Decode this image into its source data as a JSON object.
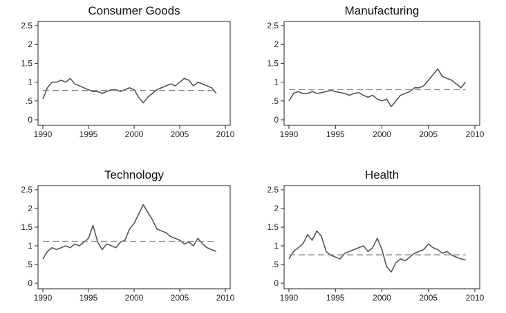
{
  "chart_data": [
    {
      "type": "line",
      "title": "Consumer Goods",
      "xlabel": "",
      "ylabel": "",
      "xlim": [
        1990,
        2010
      ],
      "ylim": [
        0,
        2.5
      ],
      "xticks": [
        1990,
        1995,
        2000,
        2005,
        2010
      ],
      "yticks": [
        0,
        0.5,
        1,
        1.5,
        2,
        2.5
      ],
      "yticklabels": [
        "0",
        ".5",
        "1",
        "1.5",
        "2",
        "2.5"
      ],
      "grid": false,
      "series": [
        {
          "style": "solid",
          "color": "#555555",
          "x": [
            1990,
            1990.5,
            1991,
            1991.5,
            1992,
            1992.5,
            1993,
            1993.5,
            1994,
            1994.5,
            1995,
            1995.5,
            1996,
            1996.5,
            1997,
            1997.5,
            1998,
            1998.5,
            1999,
            1999.5,
            2000,
            2000.5,
            2001,
            2001.5,
            2002,
            2002.5,
            2003,
            2003.5,
            2004,
            2004.5,
            2005,
            2005.5,
            2006,
            2006.5,
            2007,
            2007.5,
            2008,
            2008.5,
            2009
          ],
          "y": [
            0.55,
            0.85,
            1.0,
            1.0,
            1.05,
            1.0,
            1.1,
            0.95,
            0.9,
            0.85,
            0.8,
            0.75,
            0.75,
            0.7,
            0.75,
            0.8,
            0.8,
            0.75,
            0.8,
            0.85,
            0.8,
            0.6,
            0.45,
            0.6,
            0.7,
            0.8,
            0.85,
            0.9,
            0.95,
            0.9,
            1.0,
            1.1,
            1.05,
            0.9,
            1.0,
            0.95,
            0.9,
            0.85,
            0.7
          ]
        },
        {
          "style": "dashed",
          "color": "#888888",
          "x": [
            1990,
            2009
          ],
          "y": [
            0.78,
            0.78
          ]
        }
      ]
    },
    {
      "type": "line",
      "title": "Manufacturing",
      "xlabel": "",
      "ylabel": "",
      "xlim": [
        1990,
        2010
      ],
      "ylim": [
        0,
        2.5
      ],
      "xticks": [
        1990,
        1995,
        2000,
        2005,
        2010
      ],
      "yticks": [
        0,
        0.5,
        1,
        1.5,
        2,
        2.5
      ],
      "yticklabels": [
        "0",
        ".5",
        "1",
        "1.5",
        "2",
        "2.5"
      ],
      "grid": false,
      "series": [
        {
          "style": "solid",
          "color": "#555555",
          "x": [
            1990,
            1990.5,
            1991,
            1991.5,
            1992,
            1992.5,
            1993,
            1993.5,
            1994,
            1994.5,
            1995,
            1995.5,
            1996,
            1996.5,
            1997,
            1997.5,
            1998,
            1998.5,
            1999,
            1999.5,
            2000,
            2000.5,
            2001,
            2001.5,
            2002,
            2002.5,
            2003,
            2003.5,
            2004,
            2004.5,
            2005,
            2005.5,
            2006,
            2006.5,
            2007,
            2007.5,
            2008,
            2008.5,
            2009
          ],
          "y": [
            0.5,
            0.7,
            0.75,
            0.7,
            0.7,
            0.75,
            0.7,
            0.72,
            0.75,
            0.78,
            0.75,
            0.72,
            0.7,
            0.65,
            0.7,
            0.72,
            0.65,
            0.6,
            0.65,
            0.55,
            0.5,
            0.55,
            0.35,
            0.5,
            0.65,
            0.7,
            0.75,
            0.85,
            0.85,
            0.9,
            1.05,
            1.2,
            1.35,
            1.15,
            1.1,
            1.05,
            0.95,
            0.85,
            1.0
          ]
        },
        {
          "style": "dashed",
          "color": "#888888",
          "x": [
            1990,
            2009
          ],
          "y": [
            0.8,
            0.8
          ]
        }
      ]
    },
    {
      "type": "line",
      "title": "Technology",
      "xlabel": "",
      "ylabel": "",
      "xlim": [
        1990,
        2010
      ],
      "ylim": [
        0,
        2.5
      ],
      "xticks": [
        1990,
        1995,
        2000,
        2005,
        2010
      ],
      "yticks": [
        0,
        0.5,
        1,
        1.5,
        2,
        2.5
      ],
      "yticklabels": [
        "0",
        ".5",
        "1",
        "1.5",
        "2",
        "2.5"
      ],
      "grid": false,
      "series": [
        {
          "style": "solid",
          "color": "#555555",
          "x": [
            1990,
            1990.5,
            1991,
            1991.5,
            1992,
            1992.5,
            1993,
            1993.5,
            1994,
            1994.5,
            1995,
            1995.5,
            1996,
            1996.5,
            1997,
            1997.5,
            1998,
            1998.5,
            1999,
            1999.5,
            2000,
            2000.5,
            2001,
            2001.5,
            2002,
            2002.5,
            2003,
            2003.5,
            2004,
            2004.5,
            2005,
            2005.5,
            2006,
            2006.5,
            2007,
            2007.5,
            2008,
            2008.5,
            2009
          ],
          "y": [
            0.65,
            0.85,
            0.95,
            0.9,
            0.95,
            1.0,
            0.95,
            1.05,
            1.0,
            1.1,
            1.2,
            1.55,
            1.1,
            0.9,
            1.05,
            1.0,
            0.95,
            1.1,
            1.15,
            1.45,
            1.6,
            1.85,
            2.1,
            1.9,
            1.7,
            1.45,
            1.4,
            1.35,
            1.25,
            1.2,
            1.15,
            1.05,
            1.1,
            1.0,
            1.2,
            1.05,
            0.95,
            0.9,
            0.85
          ]
        },
        {
          "style": "dashed",
          "color": "#888888",
          "x": [
            1990,
            2009
          ],
          "y": [
            1.12,
            1.12
          ]
        }
      ]
    },
    {
      "type": "line",
      "title": "Health",
      "xlabel": "",
      "ylabel": "",
      "xlim": [
        1990,
        2010
      ],
      "ylim": [
        0,
        2.5
      ],
      "xticks": [
        1990,
        1995,
        2000,
        2005,
        2010
      ],
      "yticks": [
        0,
        0.5,
        1,
        1.5,
        2,
        2.5
      ],
      "yticklabels": [
        "0",
        ".5",
        "1",
        "1.5",
        "2",
        "2.5"
      ],
      "grid": false,
      "series": [
        {
          "style": "solid",
          "color": "#555555",
          "x": [
            1990,
            1990.5,
            1991,
            1991.5,
            1992,
            1992.5,
            1993,
            1993.5,
            1994,
            1994.5,
            1995,
            1995.5,
            1996,
            1996.5,
            1997,
            1997.5,
            1998,
            1998.5,
            1999,
            1999.5,
            2000,
            2000.5,
            2001,
            2001.5,
            2002,
            2002.5,
            2003,
            2003.5,
            2004,
            2004.5,
            2005,
            2005.5,
            2006,
            2006.5,
            2007,
            2007.5,
            2008,
            2008.5,
            2009
          ],
          "y": [
            0.65,
            0.85,
            0.95,
            1.05,
            1.3,
            1.15,
            1.4,
            1.25,
            0.85,
            0.75,
            0.7,
            0.65,
            0.8,
            0.85,
            0.9,
            0.95,
            1.0,
            0.85,
            0.95,
            1.2,
            0.9,
            0.45,
            0.3,
            0.55,
            0.65,
            0.6,
            0.7,
            0.8,
            0.85,
            0.9,
            1.05,
            0.95,
            0.9,
            0.8,
            0.85,
            0.75,
            0.7,
            0.65,
            0.62
          ]
        },
        {
          "style": "dashed",
          "color": "#888888",
          "x": [
            1990,
            2009
          ],
          "y": [
            0.76,
            0.76
          ]
        }
      ]
    }
  ]
}
